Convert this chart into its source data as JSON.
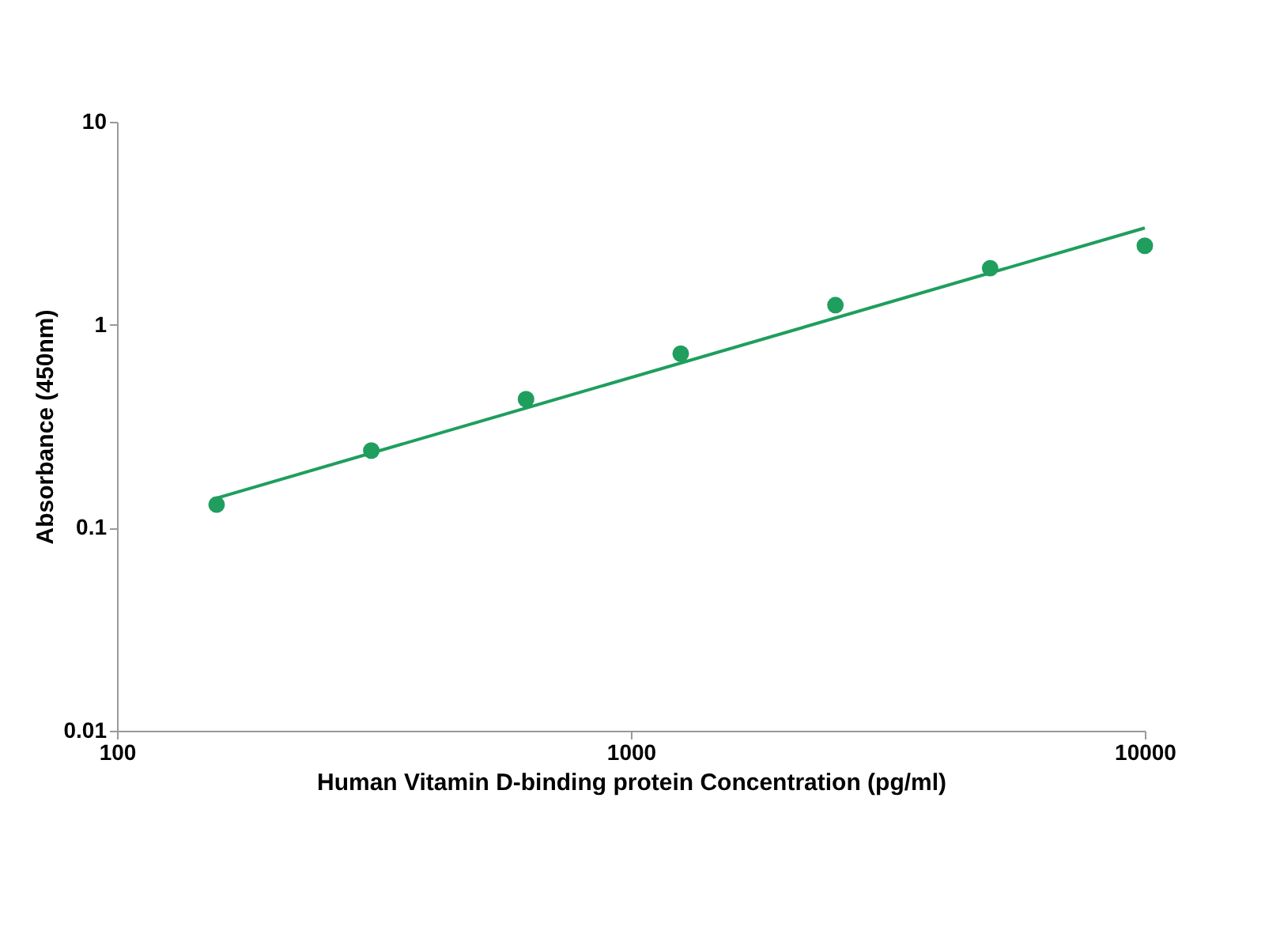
{
  "chart_data": {
    "type": "scatter",
    "xlabel": "Human Vitamin D-binding protein Concentration (pg/ml)",
    "ylabel": "Absorbance (450nm)",
    "log": "xy",
    "grid": false,
    "xlim": [
      100,
      10000
    ],
    "xticks": [
      100,
      1000,
      10000
    ],
    "ylim": [
      0.01,
      10
    ],
    "yticks": [
      0.01,
      0.1,
      1,
      10
    ],
    "series": [
      {
        "marker": "circle",
        "color": "#1f9e5e",
        "x": [
          156.25,
          312.5,
          625,
          1250,
          2500,
          5000,
          10000
        ],
        "values": [
          0.13,
          0.24,
          0.43,
          0.72,
          1.25,
          1.9,
          2.45
        ]
      },
      {
        "type": "line",
        "color": "#1f9e5e",
        "x": [
          156.25,
          10000
        ],
        "values": [
          0.14,
          3.0
        ]
      }
    ]
  }
}
